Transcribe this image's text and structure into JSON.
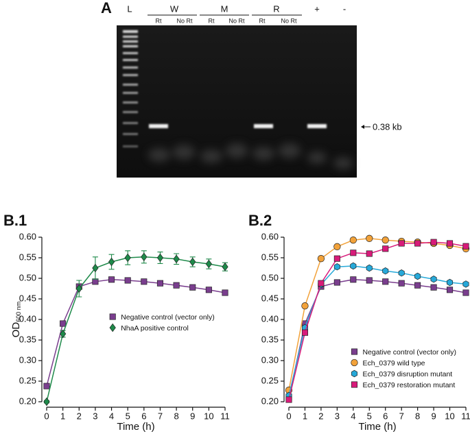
{
  "gel": {
    "panel_label": "A",
    "lanes": [
      "L",
      "W",
      "M",
      "R",
      "+",
      "-"
    ],
    "sublabels": [
      "Rt",
      "No Rt",
      "Rt",
      "No Rt",
      "Rt",
      "No Rt"
    ],
    "band_label": "0.38 kb"
  },
  "chart_data": [
    {
      "type": "line",
      "panel_label": "B.1",
      "xlabel": "Time (h)",
      "ylabel": "OD",
      "ylabel_sub": "600 nm",
      "x": [
        0,
        1,
        2,
        3,
        4,
        5,
        6,
        7,
        8,
        9,
        10,
        11
      ],
      "xlim": [
        0,
        11
      ],
      "xticks": [
        0,
        1,
        2,
        3,
        4,
        5,
        6,
        7,
        8,
        9,
        10,
        11
      ],
      "ylim": [
        0.2,
        0.6
      ],
      "yticks": [
        {
          "value": 0.2,
          "label": "0.20"
        },
        {
          "value": 0.25,
          "label": "0.25"
        },
        {
          "value": 0.3,
          "label": "0.30"
        },
        {
          "value": 0.35,
          "label": "0.35"
        },
        {
          "value": 0.4,
          "label": "0.40"
        },
        {
          "value": 0.45,
          "label": "0.45"
        },
        {
          "value": 0.5,
          "label": "0.50"
        },
        {
          "value": 0.55,
          "label": "0.55"
        },
        {
          "value": 0.6,
          "label": "0.60"
        }
      ],
      "legend": "center right",
      "series": [
        {
          "name": "Negative control (vector only)",
          "color": "#7a3e8e",
          "marker": "square",
          "values": [
            0.238,
            0.39,
            0.48,
            0.492,
            0.497,
            0.495,
            0.492,
            0.488,
            0.483,
            0.478,
            0.472,
            0.465
          ],
          "errors": [
            0.004,
            0.006,
            0.006,
            0.005,
            0.005,
            0.005,
            0.005,
            0.005,
            0.005,
            0.005,
            0.006,
            0.006
          ]
        },
        {
          "name": "NhaA positive control",
          "color": "#1e8a4a",
          "marker": "diamond",
          "values": [
            0.2,
            0.365,
            0.475,
            0.525,
            0.54,
            0.55,
            0.552,
            0.55,
            0.547,
            0.54,
            0.535,
            0.528
          ],
          "errors": [
            0.003,
            0.008,
            0.02,
            0.027,
            0.018,
            0.017,
            0.015,
            0.014,
            0.013,
            0.012,
            0.012,
            0.01
          ]
        }
      ]
    },
    {
      "type": "line",
      "panel_label": "B.2",
      "xlabel": "Time (h)",
      "x": [
        0,
        1,
        2,
        3,
        4,
        5,
        6,
        7,
        8,
        9,
        10,
        11
      ],
      "xlim": [
        0,
        11
      ],
      "xticks": [
        0,
        1,
        2,
        3,
        4,
        5,
        6,
        7,
        8,
        9,
        10,
        11
      ],
      "ylim": [
        0.2,
        0.6
      ],
      "yticks": [
        {
          "value": 0.2,
          "label": "0.20"
        },
        {
          "value": 0.25,
          "label": "0.25"
        },
        {
          "value": 0.3,
          "label": "0.30"
        },
        {
          "value": 0.35,
          "label": "0.35"
        },
        {
          "value": 0.4,
          "label": "0.40"
        },
        {
          "value": 0.45,
          "label": "0.45"
        },
        {
          "value": 0.5,
          "label": "0.50"
        },
        {
          "value": 0.55,
          "label": "0.55"
        },
        {
          "value": 0.6,
          "label": "0.60"
        }
      ],
      "legend": "lower right",
      "series": [
        {
          "name": "Negative control (vector only)",
          "color": "#7a3e8e",
          "marker": "square",
          "values": [
            0.21,
            0.39,
            0.48,
            0.49,
            0.497,
            0.495,
            0.492,
            0.488,
            0.483,
            0.478,
            0.472,
            0.465
          ]
        },
        {
          "name": "Ech_0379 wild type",
          "color": "#f2a23a",
          "marker": "circle",
          "values": [
            0.228,
            0.433,
            0.548,
            0.577,
            0.593,
            0.597,
            0.593,
            0.59,
            0.588,
            0.585,
            0.58,
            0.572
          ]
        },
        {
          "name": "Ech_0379 disruption mutant",
          "color": "#27a9d9",
          "marker": "hexagon",
          "values": [
            0.215,
            0.38,
            0.485,
            0.528,
            0.53,
            0.525,
            0.518,
            0.513,
            0.505,
            0.498,
            0.49,
            0.486
          ]
        },
        {
          "name": "Ech_0379 restoration mutant",
          "color": "#d81b7a",
          "marker": "square",
          "values": [
            0.205,
            0.368,
            0.488,
            0.548,
            0.562,
            0.56,
            0.572,
            0.585,
            0.585,
            0.588,
            0.585,
            0.578
          ]
        }
      ]
    }
  ]
}
